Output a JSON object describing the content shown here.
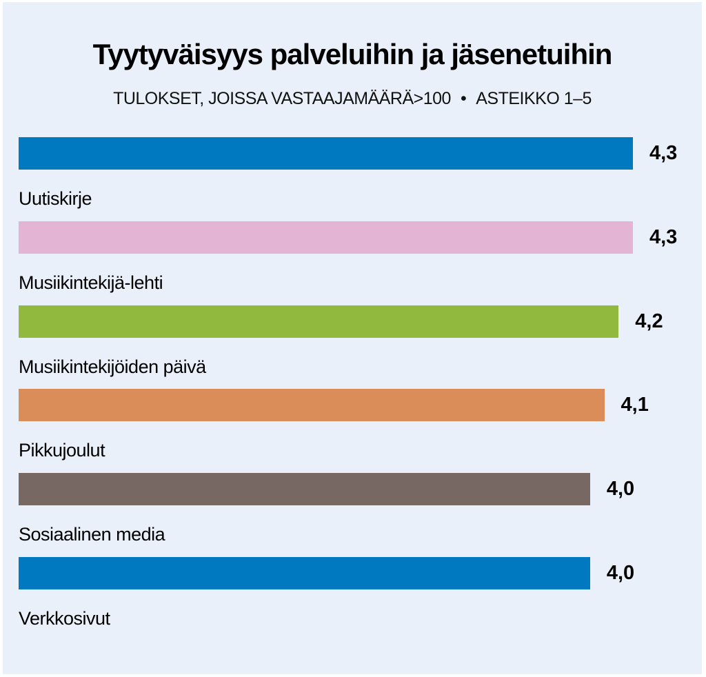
{
  "chart_data": {
    "type": "bar",
    "orientation": "horizontal",
    "title": "Tyytyväisyys palveluihin ja jäsenetuihin",
    "subtitle_left": "TULOKSET, JOISSA VASTAAJAMÄÄRÄ>100",
    "subtitle_separator": "•",
    "subtitle_right": "ASTEIKKO 1–5",
    "xlim": [
      0,
      4.3
    ],
    "categories": [
      "Uutiskirje",
      "Musiikintekijä-lehti",
      "Musiikintekijöiden päivä",
      "Pikkujoulut",
      "Sosiaalinen media",
      "Verkkosivut"
    ],
    "values": [
      4.3,
      4.3,
      4.2,
      4.1,
      4.0,
      4.0
    ],
    "value_labels": [
      "4,3",
      "4,3",
      "4,2",
      "4,1",
      "4,0",
      "4,0"
    ],
    "colors": [
      "#0079c1",
      "#e3b4d3",
      "#90b93e",
      "#db8d59",
      "#786864",
      "#0079c1"
    ],
    "grid": false,
    "legend": "none"
  }
}
